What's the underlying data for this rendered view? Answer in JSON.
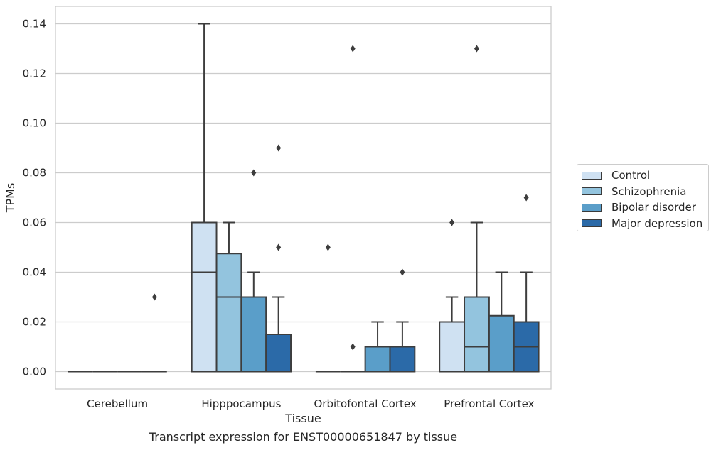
{
  "chart_data": {
    "type": "box",
    "title": "Transcript expression for ENST00000651847 by tissue",
    "xlabel": "Tissue",
    "ylabel": "TPMs",
    "ylim": [
      -0.007,
      0.147
    ],
    "yticks": [
      0.0,
      0.02,
      0.04,
      0.06,
      0.08,
      0.1,
      0.12,
      0.14
    ],
    "ytick_labels": [
      "0.00",
      "0.02",
      "0.04",
      "0.06",
      "0.08",
      "0.10",
      "0.12",
      "0.14"
    ],
    "grid": "horizontal",
    "legend_position": "right",
    "categories": [
      "Cerebellum",
      "Hipppocampus",
      "Orbitofontal Cortex",
      "Prefrontal Cortex"
    ],
    "series": [
      {
        "name": "Control",
        "color": "#cfe1f2",
        "boxes": [
          {
            "whisker_low": 0.0,
            "q1": 0.0,
            "median": 0.0,
            "q3": 0.0,
            "whisker_high": 0.0,
            "outliers": []
          },
          {
            "whisker_low": 0.0,
            "q1": 0.0,
            "median": 0.04,
            "q3": 0.06,
            "whisker_high": 0.14,
            "outliers": []
          },
          {
            "whisker_low": 0.0,
            "q1": 0.0,
            "median": 0.0,
            "q3": 0.0,
            "whisker_high": 0.0,
            "outliers": [
              0.05
            ]
          },
          {
            "whisker_low": 0.0,
            "q1": 0.0,
            "median": 0.0,
            "q3": 0.02,
            "whisker_high": 0.03,
            "outliers": [
              0.06
            ]
          }
        ]
      },
      {
        "name": "Schizophrenia",
        "color": "#93c4de",
        "boxes": [
          {
            "whisker_low": 0.0,
            "q1": 0.0,
            "median": 0.0,
            "q3": 0.0,
            "whisker_high": 0.0,
            "outliers": []
          },
          {
            "whisker_low": 0.0,
            "q1": 0.0,
            "median": 0.03,
            "q3": 0.0475,
            "whisker_high": 0.06,
            "outliers": []
          },
          {
            "whisker_low": 0.0,
            "q1": 0.0,
            "median": 0.0,
            "q3": 0.0,
            "whisker_high": 0.0,
            "outliers": [
              0.01,
              0.13
            ]
          },
          {
            "whisker_low": 0.0,
            "q1": 0.0,
            "median": 0.01,
            "q3": 0.03,
            "whisker_high": 0.06,
            "outliers": [
              0.13
            ]
          }
        ]
      },
      {
        "name": "Bipolar disorder",
        "color": "#5a9ec9",
        "boxes": [
          {
            "whisker_low": 0.0,
            "q1": 0.0,
            "median": 0.0,
            "q3": 0.0,
            "whisker_high": 0.0,
            "outliers": []
          },
          {
            "whisker_low": 0.0,
            "q1": 0.0,
            "median": 0.03,
            "q3": 0.03,
            "whisker_high": 0.04,
            "outliers": [
              0.08
            ]
          },
          {
            "whisker_low": 0.0,
            "q1": 0.0,
            "median": 0.0,
            "q3": 0.01,
            "whisker_high": 0.02,
            "outliers": []
          },
          {
            "whisker_low": 0.0,
            "q1": 0.0,
            "median": 0.0,
            "q3": 0.0225,
            "whisker_high": 0.04,
            "outliers": []
          }
        ]
      },
      {
        "name": "Major depression",
        "color": "#2b6aa8",
        "boxes": [
          {
            "whisker_low": 0.0,
            "q1": 0.0,
            "median": 0.0,
            "q3": 0.0,
            "whisker_high": 0.0,
            "outliers": [
              0.03
            ]
          },
          {
            "whisker_low": 0.0,
            "q1": 0.0,
            "median": 0.0,
            "q3": 0.015,
            "whisker_high": 0.03,
            "outliers": [
              0.05,
              0.09
            ]
          },
          {
            "whisker_low": 0.0,
            "q1": 0.0,
            "median": 0.0,
            "q3": 0.01,
            "whisker_high": 0.02,
            "outliers": [
              0.04
            ]
          },
          {
            "whisker_low": 0.0,
            "q1": 0.0,
            "median": 0.01,
            "q3": 0.02,
            "whisker_high": 0.04,
            "outliers": [
              0.07
            ]
          }
        ]
      }
    ]
  }
}
